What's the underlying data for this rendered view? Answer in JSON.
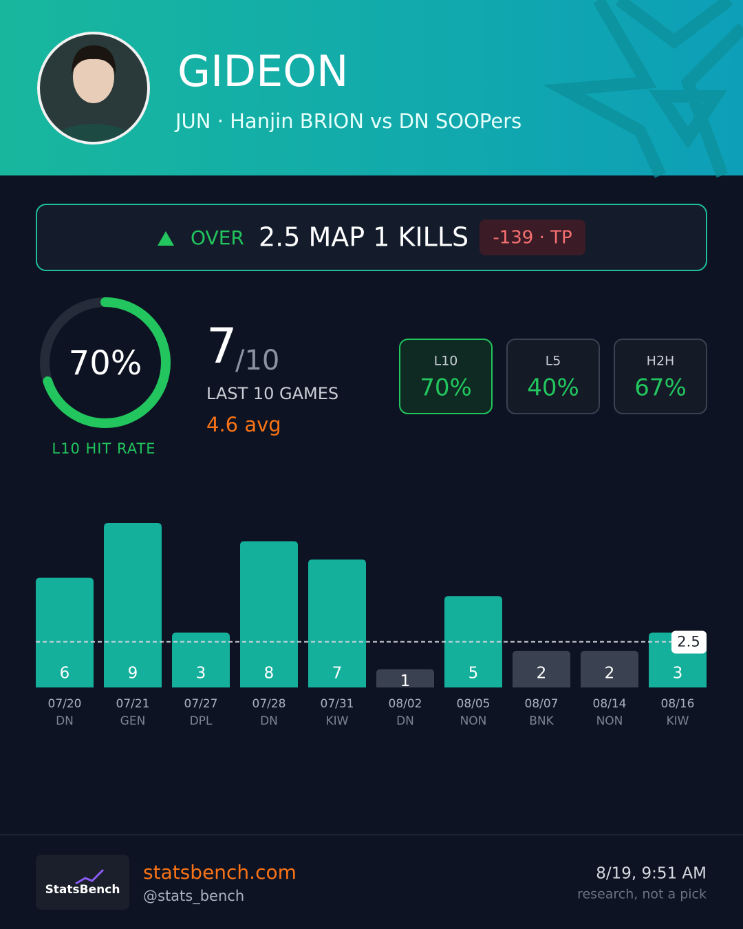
{
  "header": {
    "name": "GIDEON",
    "subtitle": "JUN · Hanjin BRION vs DN SOOPers"
  },
  "pick": {
    "direction": "OVER",
    "line": "2.5 MAP 1 KILLS",
    "odds": "-139 · TP"
  },
  "hit_rate": {
    "value": 70,
    "label": "70%",
    "caption": "L10 HIT RATE"
  },
  "record": {
    "hits": "7",
    "total": "/10",
    "caption": "LAST 10 GAMES",
    "avg": "4.6 avg"
  },
  "splits": [
    {
      "label": "L10",
      "value": "70%",
      "selected": true
    },
    {
      "label": "L5",
      "value": "40%",
      "selected": false
    },
    {
      "label": "H2H",
      "value": "67%",
      "selected": false
    }
  ],
  "chart_data": {
    "type": "bar",
    "categories": [
      "07/20",
      "07/21",
      "07/27",
      "07/28",
      "07/31",
      "08/02",
      "08/05",
      "08/07",
      "08/14",
      "08/16"
    ],
    "opponents": [
      "DN",
      "GEN",
      "DPL",
      "DN",
      "KIW",
      "DN",
      "NON",
      "BNK",
      "NON",
      "KIW"
    ],
    "values": [
      6,
      9,
      3,
      8,
      7,
      1,
      5,
      2,
      2,
      3
    ],
    "threshold": 2.5,
    "ylim": [
      0,
      9
    ],
    "over_color": "#14b09c",
    "under_color": "#3a4150"
  },
  "footer": {
    "logo": "StatsBench",
    "site": "statsbench.com",
    "handle": "@stats_bench",
    "timestamp": "8/19, 9:51 AM",
    "disclaimer": "research, not a pick"
  }
}
